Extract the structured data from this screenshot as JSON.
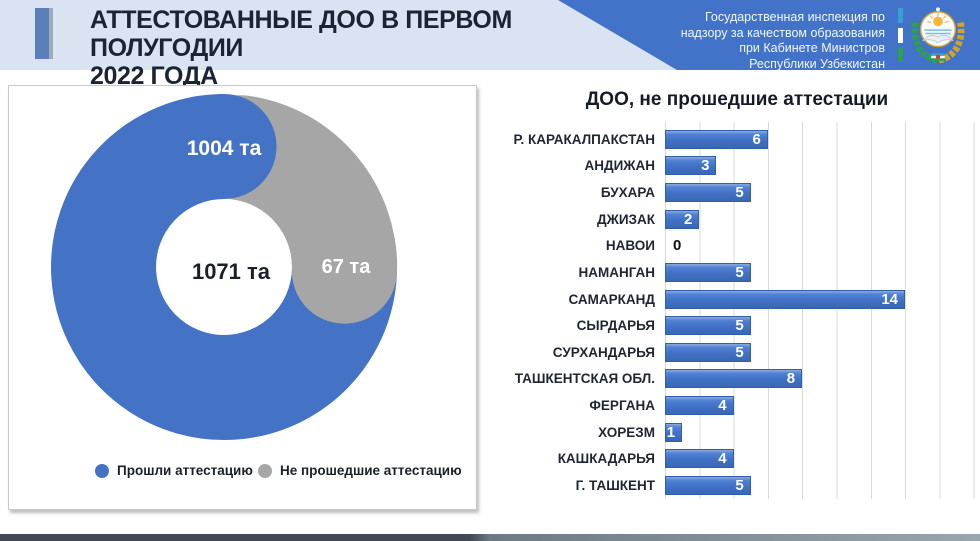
{
  "slide": {
    "header": {
      "title_lines": [
        "АТТЕСТОВАННЫЕ ДОО В ПЕРВОМ ПОЛУГОДИИ",
        "2022 ГОДА"
      ],
      "agency_lines": [
        "Государственная инспекция по",
        "надзору за качеством образования",
        "при Кабинете Министров",
        "Республики Узбекистан"
      ],
      "emblem_icon": "uzbekistan-state-emblem",
      "flag_strip_colors": [
        "#35a0d7",
        "#ffffff",
        "#2f9e4f"
      ]
    }
  },
  "colors": {
    "banner_blue": "#4273c8",
    "header_light_blue": "#dae3f1",
    "accent_bar_blue": "#5b7fb8",
    "title_text": "#1b2433",
    "footer_dark": "#3f4a54",
    "footer_light": "#9aa6ae",
    "gridline_gray": "#d9d9d9"
  },
  "chart_data": [
    {
      "type": "pie",
      "subtype": "doughnut-swirl",
      "labels": [
        "Прошли аттестацию",
        "Не прошедшие аттестацию"
      ],
      "values": [
        1004,
        67
      ],
      "value_labels": [
        "1004 та",
        "67 та"
      ],
      "center_label": "1071 та",
      "total": 1071,
      "colors": [
        "#4472c4",
        "#a6a6a6"
      ],
      "legend_position": "bottom"
    },
    {
      "type": "bar",
      "orientation": "horizontal",
      "title": "ДОО, не прошедшие аттестации",
      "categories": [
        "Р. КАРАКАЛПАКСТАН",
        "АНДИЖАН",
        "БУХАРА",
        "ДЖИЗАК",
        "НАВОИ",
        "НАМАНГАН",
        "САМАРКАНД",
        "СЫРДАРЬЯ",
        "СУРХАНДАРЬЯ",
        "ТАШКЕНТСКАЯ ОБЛ.",
        "ФЕРГАНА",
        "ХОРЕЗМ",
        "КАШКАДАРЬЯ",
        "Г. ТАШКЕНТ"
      ],
      "values": [
        6,
        3,
        5,
        2,
        0,
        5,
        14,
        5,
        5,
        8,
        4,
        1,
        4,
        5
      ],
      "bar_color": "#4472c4",
      "value_label_color_inside": "#ffffff",
      "value_label_color_zero": "#0d0d0d",
      "xlim": [
        0,
        18.2
      ],
      "grid_step": 2,
      "grid": true,
      "legend_position": "none"
    }
  ]
}
